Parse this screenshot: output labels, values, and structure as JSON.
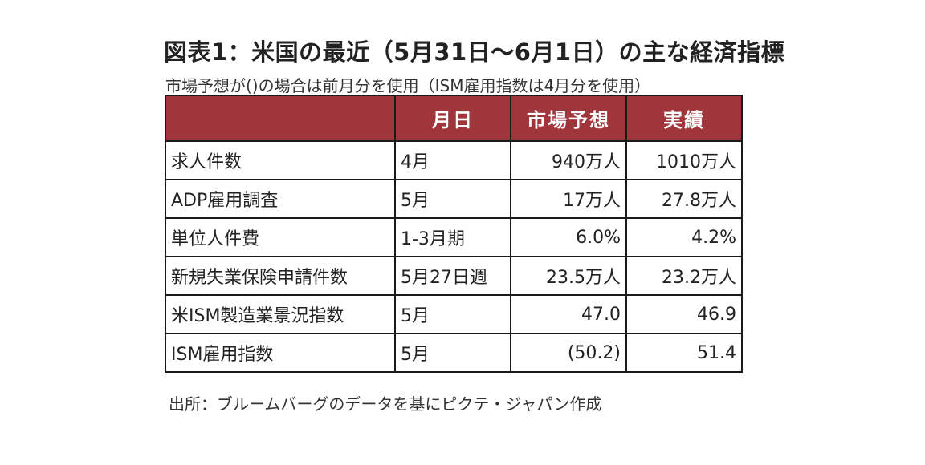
{
  "title": "図表1：米国の最近（5月31日～6月1日）の主な経済指標",
  "subtitle": "市場予想が()の場合は前月分を使用（ISM雇用指数は4月分を使用）",
  "table": {
    "headers": [
      "",
      "月日",
      "市場予想",
      "実績"
    ],
    "rows": [
      {
        "name": "求人件数",
        "date": "4月",
        "forecast": "940万人",
        "actual": "1010万人"
      },
      {
        "name": "ADP雇用調査",
        "date": "5月",
        "forecast": "17万人",
        "actual": "27.8万人"
      },
      {
        "name": "単位人件費",
        "date": "1-3月期",
        "forecast": "6.0%",
        "actual": "4.2%"
      },
      {
        "name": "新規失業保険申請件数",
        "date": "5月27日週",
        "forecast": "23.5万人",
        "actual": "23.2万人"
      },
      {
        "name": "米ISM製造業景況指数",
        "date": "5月",
        "forecast": "47.0",
        "actual": "46.9"
      },
      {
        "name": "ISM雇用指数",
        "date": "5月",
        "forecast": "(50.2)",
        "actual": "51.4"
      }
    ]
  },
  "source": "出所：ブルームバーグのデータを基にピクテ・ジャパン作成",
  "colors": {
    "header_bg": "#a0363b",
    "header_text": "#ffffff",
    "border": "#1a1a1a"
  }
}
